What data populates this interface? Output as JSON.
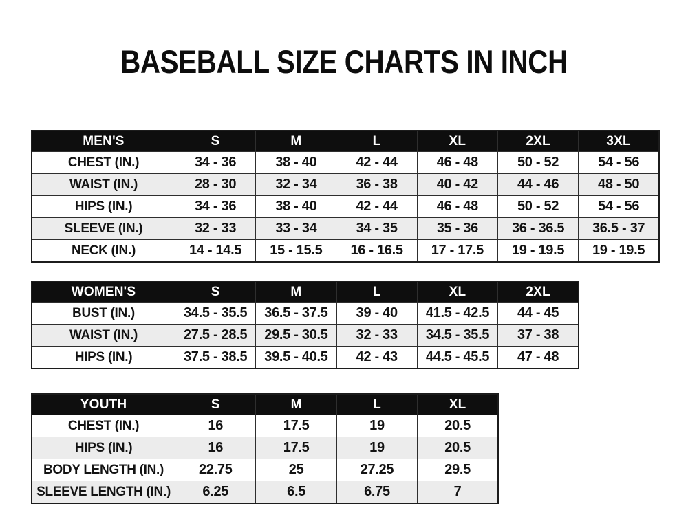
{
  "title": "BASEBALL SIZE CHARTS IN INCH",
  "colors": {
    "header_bg": "#0e0e0e",
    "header_text": "#ffffff",
    "row_alt_bg": "#ececec",
    "border": "#2e2e2e",
    "text": "#131313",
    "page_bg": "#ffffff"
  },
  "chart_data": [
    {
      "type": "table",
      "group_label": "MEN'S",
      "sizes": [
        "S",
        "M",
        "L",
        "XL",
        "2XL",
        "3XL"
      ],
      "rows": [
        {
          "label": "CHEST (IN.)",
          "values": [
            "34 - 36",
            "38 - 40",
            "42 - 44",
            "46 - 48",
            "50 - 52",
            "54 - 56"
          ]
        },
        {
          "label": "WAIST (IN.)",
          "values": [
            "28 - 30",
            "32 - 34",
            "36 - 38",
            "40 - 42",
            "44 - 46",
            "48 - 50"
          ]
        },
        {
          "label": "HIPS (IN.)",
          "values": [
            "34 - 36",
            "38 - 40",
            "42 - 44",
            "46 - 48",
            "50 - 52",
            "54 - 56"
          ]
        },
        {
          "label": "SLEEVE (IN.)",
          "values": [
            "32 - 33",
            "33 - 34",
            "34 - 35",
            "35 - 36",
            "36 - 36.5",
            "36.5 - 37"
          ]
        },
        {
          "label": "NECK (IN.)",
          "values": [
            "14 - 14.5",
            "15 - 15.5",
            "16 - 16.5",
            "17 - 17.5",
            "19 - 19.5",
            "19 - 19.5"
          ]
        }
      ]
    },
    {
      "type": "table",
      "group_label": "WOMEN'S",
      "sizes": [
        "S",
        "M",
        "L",
        "XL",
        "2XL"
      ],
      "rows": [
        {
          "label": "BUST (IN.)",
          "values": [
            "34.5 - 35.5",
            "36.5 - 37.5",
            "39 - 40",
            "41.5 - 42.5",
            "44 - 45"
          ]
        },
        {
          "label": "WAIST (IN.)",
          "values": [
            "27.5 - 28.5",
            "29.5 - 30.5",
            "32 - 33",
            "34.5 - 35.5",
            "37 - 38"
          ]
        },
        {
          "label": "HIPS (IN.)",
          "values": [
            "37.5 - 38.5",
            "39.5 - 40.5",
            "42 - 43",
            "44.5 - 45.5",
            "47 - 48"
          ]
        }
      ]
    },
    {
      "type": "table",
      "group_label": "YOUTH",
      "sizes": [
        "S",
        "M",
        "L",
        "XL"
      ],
      "rows": [
        {
          "label": "CHEST (IN.)",
          "values": [
            "16",
            "17.5",
            "19",
            "20.5"
          ]
        },
        {
          "label": "HIPS (IN.)",
          "values": [
            "16",
            "17.5",
            "19",
            "20.5"
          ]
        },
        {
          "label": "BODY LENGTH (IN.)",
          "values": [
            "22.75",
            "25",
            "27.25",
            "29.5"
          ]
        },
        {
          "label": "SLEEVE LENGTH (IN.)",
          "values": [
            "6.25",
            "6.5",
            "6.75",
            "7"
          ]
        }
      ]
    }
  ]
}
